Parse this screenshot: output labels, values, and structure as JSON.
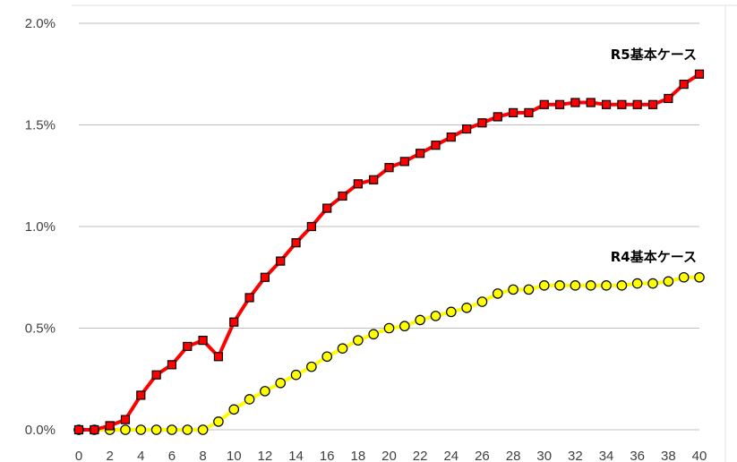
{
  "chart_data": {
    "type": "line",
    "x": [
      0,
      1,
      2,
      3,
      4,
      5,
      6,
      7,
      8,
      9,
      10,
      11,
      12,
      13,
      14,
      15,
      16,
      17,
      18,
      19,
      20,
      21,
      22,
      23,
      24,
      25,
      26,
      27,
      28,
      29,
      30,
      31,
      32,
      33,
      34,
      35,
      36,
      37,
      38,
      39,
      40
    ],
    "xticks": [
      "0",
      "2",
      "4",
      "6",
      "8",
      "10",
      "12",
      "14",
      "16",
      "18",
      "20",
      "22",
      "24",
      "26",
      "28",
      "30",
      "32",
      "34",
      "36",
      "38",
      "40"
    ],
    "ylim": [
      0,
      0.02
    ],
    "yticks": [
      "0.0%",
      "0.5%",
      "1.0%",
      "1.5%",
      "2.0%"
    ],
    "grid": true,
    "series": [
      {
        "name": "R5基本ケース",
        "color": "#ff0000",
        "marker": "square",
        "values": [
          0.0,
          0.0,
          0.0002,
          0.0005,
          0.0017,
          0.0027,
          0.0032,
          0.0041,
          0.0044,
          0.0036,
          0.0053,
          0.0065,
          0.0075,
          0.0083,
          0.0092,
          0.01,
          0.0109,
          0.0115,
          0.0121,
          0.0123,
          0.0129,
          0.0132,
          0.0136,
          0.014,
          0.0144,
          0.0148,
          0.0151,
          0.0154,
          0.0156,
          0.0156,
          0.016,
          0.016,
          0.0161,
          0.0161,
          0.016,
          0.016,
          0.016,
          0.016,
          0.0163,
          0.017,
          0.0175
        ]
      },
      {
        "name": "R4基本ケース",
        "color": "#ffff00",
        "marker": "circle",
        "values": [
          0.0,
          0.0,
          0.0,
          0.0,
          0.0,
          0.0,
          0.0,
          0.0,
          0.0,
          0.0004,
          0.001,
          0.0015,
          0.0019,
          0.0023,
          0.0027,
          0.0031,
          0.0036,
          0.004,
          0.0044,
          0.0047,
          0.005,
          0.0051,
          0.0054,
          0.0056,
          0.0058,
          0.006,
          0.0063,
          0.0067,
          0.0069,
          0.0069,
          0.0071,
          0.0071,
          0.0071,
          0.0071,
          0.0071,
          0.0071,
          0.0072,
          0.0072,
          0.0073,
          0.0075,
          0.0075
        ]
      }
    ]
  }
}
